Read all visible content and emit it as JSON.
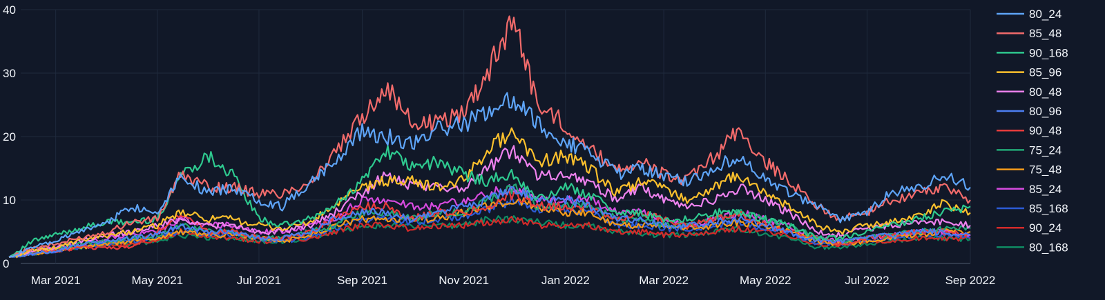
{
  "theme": {
    "background": "#111828",
    "grid": "#1f2a3d",
    "zero_line": "#3a4558",
    "text": "#f2f5fa"
  },
  "chart_data": {
    "type": "line",
    "title": "",
    "xlabel": "",
    "ylabel": "",
    "xlim": [
      "2021-02-01",
      "2022-09-01"
    ],
    "ylim": [
      0,
      40
    ],
    "y_ticks": [
      0,
      10,
      20,
      30,
      40
    ],
    "x_ticks": [
      {
        "date": "2021-03-01",
        "label": "Mar 2021"
      },
      {
        "date": "2021-05-01",
        "label": "May 2021"
      },
      {
        "date": "2021-07-01",
        "label": "Jul 2021"
      },
      {
        "date": "2021-09-01",
        "label": "Sep 2021"
      },
      {
        "date": "2021-11-01",
        "label": "Nov 2021"
      },
      {
        "date": "2022-01-01",
        "label": "Jan 2022"
      },
      {
        "date": "2022-03-01",
        "label": "Mar 2022"
      },
      {
        "date": "2022-05-01",
        "label": "May 2022"
      },
      {
        "date": "2022-07-01",
        "label": "Jul 2022"
      },
      {
        "date": "2022-09-01",
        "label": "Sep 2022"
      }
    ],
    "grid": true,
    "legend_position": "right",
    "x": [
      "2021-02-01",
      "2021-02-15",
      "2021-03-01",
      "2021-03-15",
      "2021-04-01",
      "2021-04-15",
      "2021-05-01",
      "2021-05-15",
      "2021-06-01",
      "2021-06-15",
      "2021-07-01",
      "2021-07-15",
      "2021-08-01",
      "2021-08-15",
      "2021-09-01",
      "2021-09-15",
      "2021-10-01",
      "2021-10-15",
      "2021-11-01",
      "2021-11-15",
      "2021-12-01",
      "2021-12-15",
      "2022-01-01",
      "2022-01-15",
      "2022-02-01",
      "2022-02-15",
      "2022-03-01",
      "2022-03-15",
      "2022-04-01",
      "2022-04-15",
      "2022-05-01",
      "2022-05-15",
      "2022-06-01",
      "2022-06-15",
      "2022-07-01",
      "2022-07-15",
      "2022-08-01",
      "2022-08-15",
      "2022-09-01"
    ],
    "series": [
      {
        "name": "80_24",
        "color": "#5ea4f7",
        "values": [
          1,
          2.5,
          3.5,
          5,
          6.5,
          9,
          8,
          14,
          11,
          12,
          10,
          9,
          13,
          16,
          21,
          20,
          19,
          21,
          22,
          24,
          26,
          22,
          19,
          18,
          14,
          15,
          14,
          13,
          15,
          17,
          13,
          11,
          9,
          7,
          8,
          11,
          12,
          14,
          12
        ]
      },
      {
        "name": "85_48",
        "color": "#f26b6b",
        "values": [
          1,
          2.5,
          3,
          4,
          5,
          6.5,
          7,
          14,
          12,
          12,
          11,
          11,
          13,
          17,
          23,
          28,
          22,
          22,
          24,
          30,
          39,
          25,
          22,
          18,
          15,
          16,
          14,
          13,
          17,
          21,
          16,
          13,
          9,
          7,
          8,
          10,
          11,
          12,
          10
        ]
      },
      {
        "name": "90_168",
        "color": "#2ec98f",
        "values": [
          1,
          3.5,
          4.5,
          5.5,
          6.5,
          6.5,
          7,
          14,
          17,
          14,
          7,
          6,
          7,
          9,
          13,
          18,
          15,
          16,
          14,
          13,
          14,
          10,
          12,
          11,
          8,
          8,
          7,
          7,
          8,
          8,
          7,
          6,
          4,
          4,
          5,
          6,
          7,
          8,
          9
        ]
      },
      {
        "name": "85_96",
        "color": "#fbc02d",
        "values": [
          1,
          2,
          2.5,
          3.5,
          4.5,
          5,
          6,
          8,
          7,
          7,
          6,
          5.5,
          6.5,
          9,
          12,
          13,
          13,
          12,
          13,
          18,
          21,
          16,
          17,
          15,
          11,
          13,
          12,
          10,
          12,
          14,
          11,
          9,
          6,
          5,
          6,
          6.5,
          7.5,
          9.5,
          8
        ]
      },
      {
        "name": "80_48",
        "color": "#ee82ee",
        "values": [
          1,
          2,
          2.5,
          3.5,
          4.5,
          5,
          6,
          7,
          6,
          6,
          5,
          5,
          6,
          8,
          11,
          14,
          12,
          12,
          12,
          15,
          18,
          14,
          14,
          13,
          10,
          12,
          10,
          9,
          10,
          12,
          10,
          8,
          5,
          4.5,
          5.5,
          6,
          6.5,
          6.5,
          6
        ]
      },
      {
        "name": "80_96",
        "color": "#4c7ef2",
        "values": [
          1,
          1.5,
          2,
          3,
          3.5,
          4,
          4.5,
          6,
          5,
          5,
          4,
          4,
          5,
          7,
          8,
          8,
          7,
          8,
          9,
          10,
          12,
          10,
          10,
          9,
          7,
          7,
          6,
          6,
          6.5,
          7,
          6,
          5,
          3.5,
          3.5,
          4,
          4.5,
          5,
          5,
          4.5
        ]
      },
      {
        "name": "90_48",
        "color": "#e83c3c",
        "values": [
          1,
          2,
          2,
          2.5,
          2.5,
          2.5,
          5,
          8,
          5,
          5,
          4,
          4,
          5,
          7,
          9,
          9,
          7,
          8,
          8,
          9,
          11,
          9,
          9,
          9,
          7,
          8,
          7,
          6,
          7,
          8,
          6,
          5,
          4,
          3,
          4,
          4.5,
          5,
          5,
          4.5
        ]
      },
      {
        "name": "75_24",
        "color": "#22a876",
        "values": [
          1,
          2,
          2.5,
          3,
          3.5,
          4,
          4.5,
          6,
          5,
          5,
          4,
          4,
          5,
          6,
          8,
          8,
          7,
          8,
          8,
          10,
          12,
          9,
          9,
          9,
          7,
          7,
          6,
          6,
          7,
          8,
          7,
          6,
          4,
          3.5,
          4,
          4.5,
          5,
          5.5,
          5.5
        ]
      },
      {
        "name": "75_48",
        "color": "#f59b1a",
        "values": [
          1,
          1.5,
          2,
          2.5,
          3,
          3.5,
          4,
          5,
          4.5,
          4.5,
          4,
          3.5,
          4.5,
          6,
          7,
          7,
          7,
          7,
          8,
          9,
          10,
          9,
          8,
          8,
          6,
          6,
          6,
          5.5,
          6,
          6.5,
          6,
          5,
          3.5,
          3,
          3.5,
          4,
          4.5,
          5,
          5
        ]
      },
      {
        "name": "85_24",
        "color": "#d84be0",
        "values": [
          1,
          2,
          2.5,
          3,
          4,
          4.5,
          5,
          7,
          6,
          6,
          5,
          5,
          6,
          7,
          10,
          10,
          9,
          9,
          10,
          11,
          12,
          10,
          10,
          10,
          8,
          8,
          7,
          6,
          7,
          8,
          7,
          6,
          4,
          3.5,
          4,
          4.5,
          5,
          5,
          4.5
        ]
      },
      {
        "name": "85_168",
        "color": "#2c5bd6",
        "values": [
          1,
          1.5,
          2,
          2.5,
          3,
          3.5,
          4,
          5,
          4.5,
          4.5,
          4,
          3.5,
          4,
          5.5,
          7,
          7,
          6.5,
          7,
          7.5,
          8.5,
          10,
          8.5,
          8.5,
          8,
          6,
          6,
          5.5,
          5.5,
          6,
          6.5,
          5.5,
          5,
          3,
          3,
          3.5,
          4,
          4.5,
          4.5,
          4
        ]
      },
      {
        "name": "90_24",
        "color": "#d42a2a",
        "values": [
          1,
          1.5,
          2,
          2.5,
          3,
          3,
          3.5,
          5,
          4,
          4,
          3.5,
          3.5,
          4,
          5,
          6,
          6,
          5.5,
          6,
          6,
          6.5,
          7,
          6,
          6,
          6,
          5,
          5,
          4.5,
          4.5,
          5,
          5.5,
          5,
          4.5,
          3,
          3,
          3.5,
          3.5,
          4,
          4,
          3.8
        ]
      },
      {
        "name": "80_168",
        "color": "#0f8c63",
        "values": [
          1,
          1.5,
          2,
          2.5,
          3,
          3,
          3.5,
          4.5,
          4,
          4,
          3.5,
          3.5,
          4,
          5,
          6,
          6,
          6,
          6,
          6,
          7,
          7,
          6.5,
          6,
          6,
          5,
          4.5,
          4.5,
          4.5,
          5,
          5.5,
          4.5,
          4,
          2.5,
          2.5,
          3,
          3.5,
          4,
          4,
          3.8
        ]
      }
    ]
  }
}
